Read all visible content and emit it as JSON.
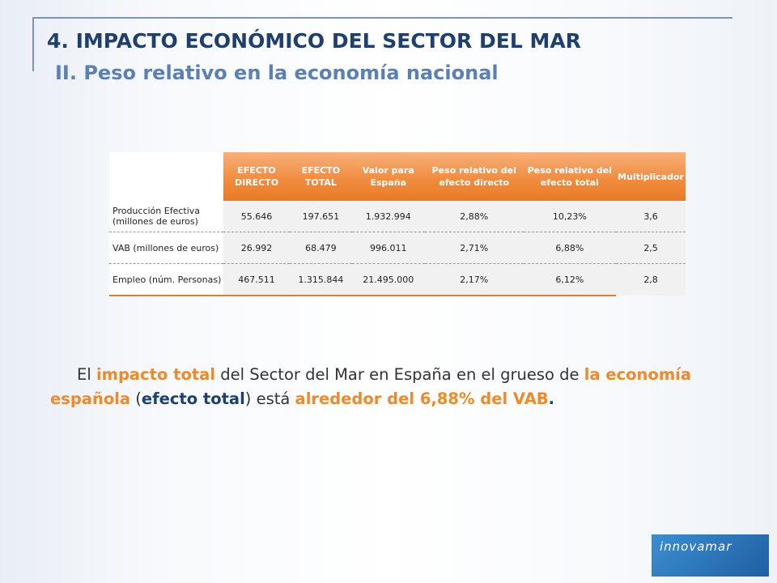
{
  "header": {
    "title": "4. IMPACTO ECONÓMICO DEL SECTOR DEL MAR",
    "subtitle": "II. Peso relativo en la economía nacional"
  },
  "table": {
    "columns": [
      "EFECTO DIRECTO",
      "EFECTO TOTAL",
      "Valor para España",
      "Peso relativo del efecto directo",
      "Peso relativo del efecto total",
      "Multiplicador"
    ],
    "rows": [
      [
        "Producción Efectiva (millones de euros)",
        "55.646",
        "197.651",
        "1.932.994",
        "2,88%",
        "10,23%",
        "3,6"
      ],
      [
        "VAB (millones de euros)",
        "26.992",
        "68.479",
        "996.011",
        "2,71%",
        "6,88%",
        "2,5"
      ],
      [
        "Empleo (núm. Personas)",
        "467.511",
        "1.315.844",
        "21.495.000",
        "2,17%",
        "6,12%",
        "2,8"
      ]
    ]
  },
  "paragraph": {
    "segments": [
      "El ",
      "impacto total",
      " del Sector del Mar en España en el grueso de ",
      "la economía española",
      " (",
      "efecto total",
      ") está ",
      "alrededor del 6,88% del VAB",
      "."
    ]
  },
  "logo": {
    "text": "innovamar"
  }
}
